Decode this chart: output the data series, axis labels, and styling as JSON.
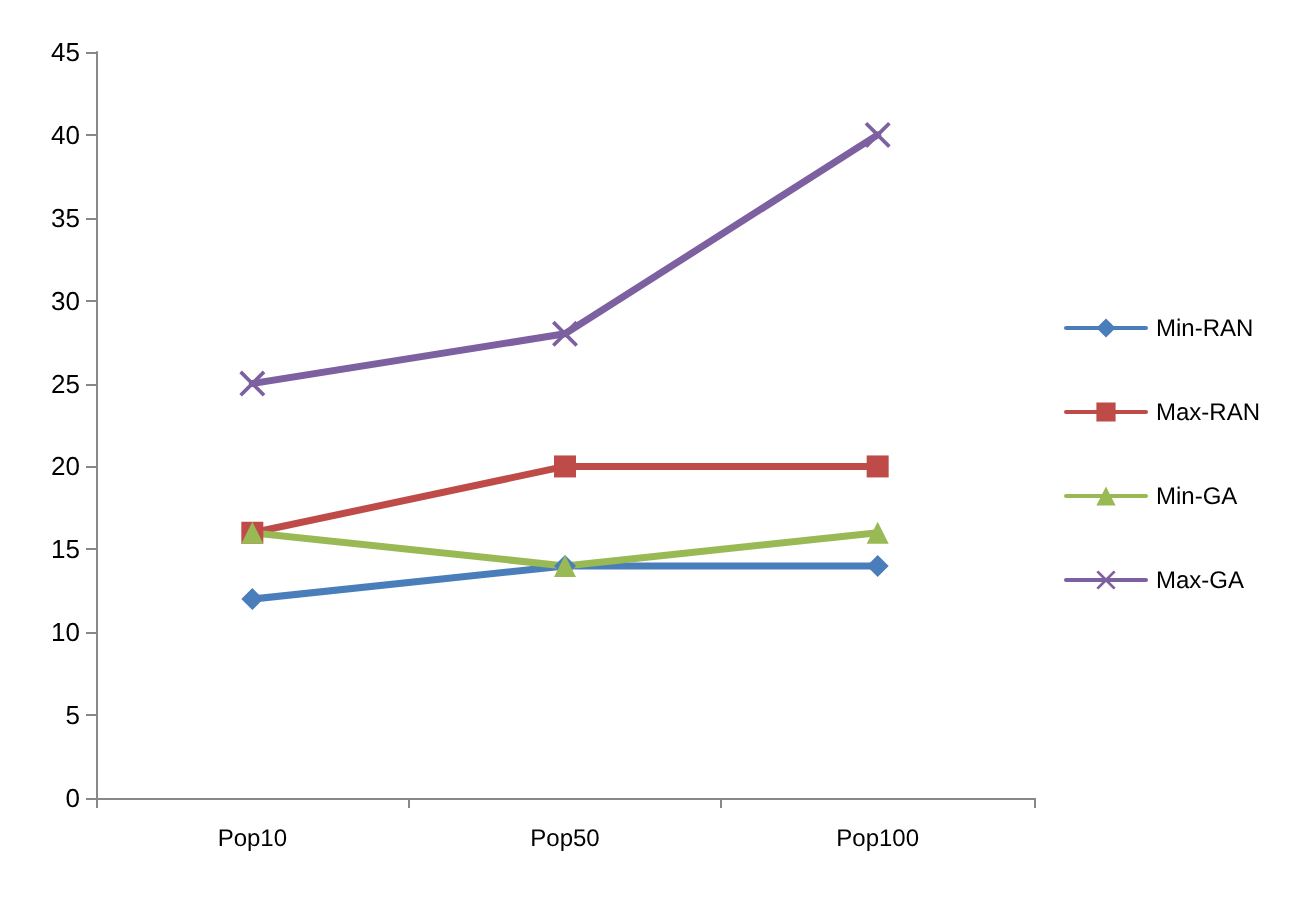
{
  "chart_data": {
    "type": "line",
    "categories": [
      "Pop10",
      "Pop50",
      "Pop100"
    ],
    "series": [
      {
        "name": "Min-RAN",
        "color": "#4a7ebb",
        "marker": "diamond",
        "values": [
          12,
          14,
          14
        ]
      },
      {
        "name": "Max-RAN",
        "color": "#be4b48",
        "marker": "square",
        "values": [
          16,
          20,
          20
        ]
      },
      {
        "name": "Min-GA",
        "color": "#98b954",
        "marker": "triangle",
        "values": [
          16,
          14,
          16
        ]
      },
      {
        "name": "Max-GA",
        "color": "#7d60a0",
        "marker": "cross",
        "values": [
          25,
          28,
          40
        ]
      }
    ],
    "ylim": [
      0,
      45
    ],
    "yticks": [
      0,
      5,
      10,
      15,
      20,
      25,
      30,
      35,
      40,
      45
    ],
    "legend": "right",
    "grid": false,
    "line_style": "solid"
  }
}
